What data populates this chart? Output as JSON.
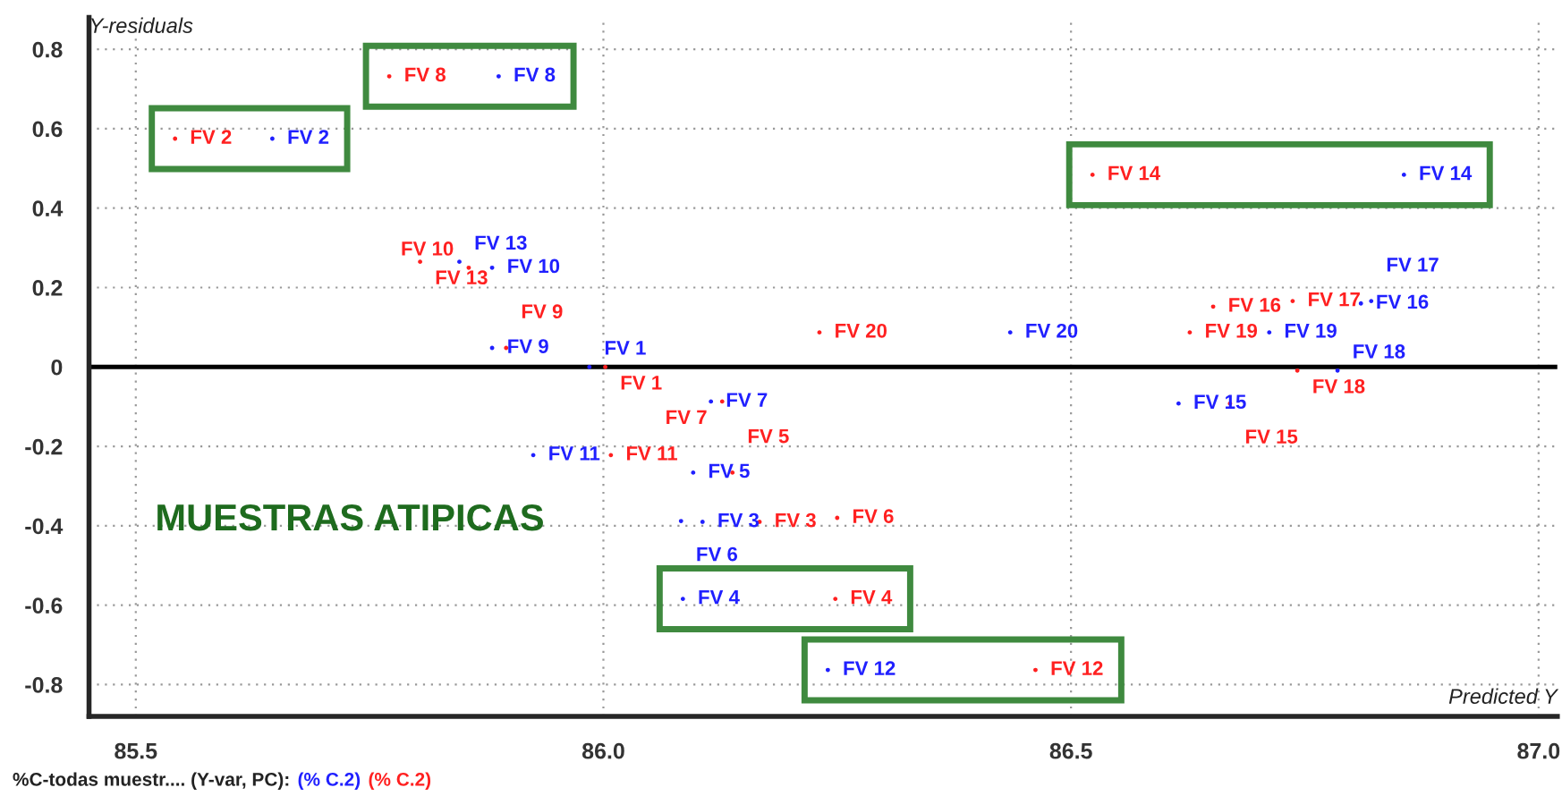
{
  "chart_data": {
    "type": "scatter",
    "xlabel": "Predicted Y",
    "ylabel": "Y-residuals",
    "legend_title": "%C-todas muestr.... (Y-var, PC):",
    "legend": "bottom left",
    "grid": true,
    "marker": "circle",
    "xlim": [
      85.45,
      87.02
    ],
    "ylim": [
      -0.88,
      0.88
    ],
    "xticks": [
      {
        "value": 85.5,
        "label": "85.5"
      },
      {
        "value": 86.0,
        "label": "86.0"
      },
      {
        "value": 86.5,
        "label": "86.5"
      },
      {
        "value": 87.0,
        "label": "87.0"
      }
    ],
    "yticks": [
      -0.8,
      -0.6,
      -0.4,
      -0.2,
      0,
      0.2,
      0.4,
      0.6,
      0.8
    ],
    "ref_lines": [
      {
        "axis": "y",
        "value": 0,
        "color": "#000000",
        "line_style": "solid"
      }
    ],
    "annotations": [
      "MUESTRAS ATIPICAS"
    ],
    "series": [
      {
        "name": "(% C.2)",
        "color": "#2020ff",
        "x": [
          85.985,
          85.646,
          86.106,
          86.085,
          86.096,
          86.083,
          86.115,
          85.888,
          85.881,
          85.881,
          85.925,
          86.24,
          85.846,
          86.856,
          86.615,
          86.81,
          86.821,
          86.785,
          86.712,
          86.435
        ],
        "values": [
          0,
          0.575,
          -0.39,
          -0.584,
          -0.266,
          -0.388,
          -0.087,
          0.732,
          0.048,
          0.25,
          -0.222,
          -0.763,
          0.265,
          0.484,
          -0.092,
          0.16,
          0.166,
          -0.009,
          0.087,
          0.087
        ],
        "value_labels": [
          "FV 1",
          "FV 2",
          "FV 3",
          "FV 4",
          "FV 5",
          "FV 6",
          "FV 7",
          "FV 8",
          "FV 9",
          "FV 10",
          "FV 11",
          "FV 12",
          "FV 13",
          "FV 14",
          "FV 15",
          "FV 16",
          "FV 17",
          "FV 18",
          "FV 19",
          "FV 20"
        ]
      },
      {
        "name": "(% C.2)",
        "color": "#ff2020",
        "x": [
          86.002,
          85.542,
          86.167,
          86.248,
          86.138,
          86.25,
          86.127,
          85.771,
          85.896,
          85.856,
          86.008,
          86.462,
          85.804,
          86.523,
          86.67,
          86.652,
          86.737,
          86.742,
          86.627,
          86.231
        ],
        "values": [
          0,
          0.575,
          -0.39,
          -0.584,
          -0.266,
          -0.38,
          -0.087,
          0.732,
          0.048,
          0.25,
          -0.222,
          -0.763,
          0.265,
          0.484,
          -0.092,
          0.152,
          0.166,
          -0.009,
          0.087,
          0.087
        ],
        "value_labels": [
          "FV 1",
          "FV 2",
          "FV 3",
          "FV 4",
          "FV 5",
          "FV 6",
          "FV 7",
          "FV 8",
          "FV 9",
          "FV 10",
          "FV 11",
          "FV 12",
          "FV 13",
          "FV 14",
          "FV 15",
          "FV 16",
          "FV 17",
          "FV 18",
          "FV 19",
          "FV 20"
        ]
      }
    ]
  }
}
